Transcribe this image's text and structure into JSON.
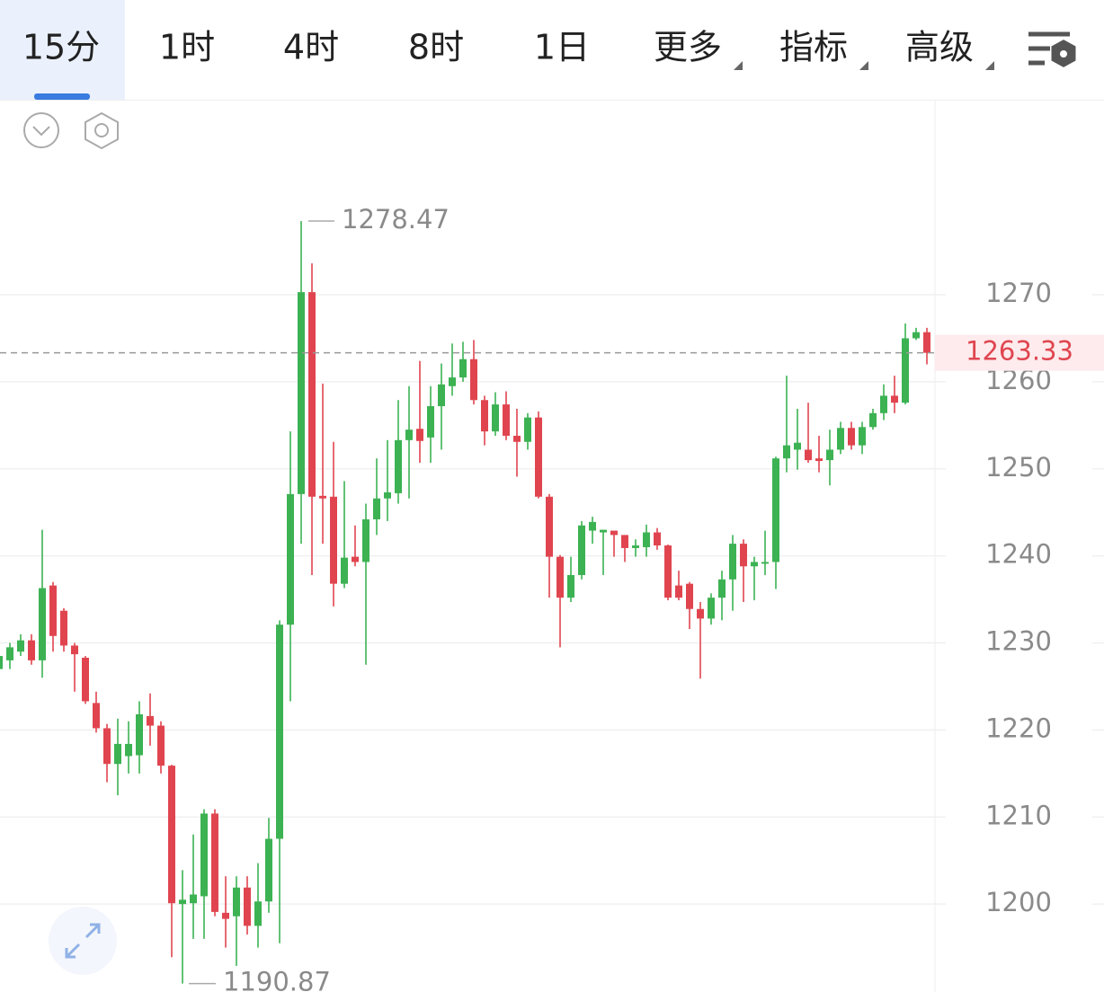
{
  "toolbar": {
    "tabs": [
      "15分",
      "1时",
      "4时",
      "8时",
      "1日",
      "更多",
      "指标",
      "高级"
    ]
  },
  "chart_data": {
    "type": "candlestick",
    "up_color": "#3cb253",
    "down_color": "#e0454f",
    "ylim": [
      1189.9,
      1292.3
    ],
    "yticks": [
      1200,
      1210,
      1220,
      1230,
      1240,
      1250,
      1260,
      1270
    ],
    "grid": true,
    "open": [
      1227.0,
      1228,
      1229,
      1230.3,
      1228,
      1236.6,
      1233.7,
      1229.7,
      1228.3,
      1223.1,
      1220.2,
      1216.1,
      1217,
      1217.1,
      1221.6,
      1220.5,
      1215.9,
      1200,
      1200.1,
      1200.9,
      1210.4,
      1199,
      1198.6,
      1201.9,
      1197.5,
      1200.3,
      1207.5,
      1232.1,
      1247.1,
      1270.3,
      1246.9,
      1246.8,
      1236.8,
      1239.9,
      1239.3,
      1244.2,
      1246.6,
      1247.2,
      1253.3,
      1254.6,
      1253.6,
      1257.2,
      1259.5,
      1260.5,
      1262.6,
      1257.9,
      1254.3,
      1257.4,
      1253.8,
      1253.1,
      1255.9,
      1246.8,
      1239.9,
      1235.2,
      1237.8,
      1242.9,
      1242.7,
      1242.9,
      1242.4,
      1240.9,
      1241,
      1242.7,
      1241.2,
      1236.6,
      1236.8,
      1233.9,
      1232.8,
      1235.2,
      1237.3,
      1241.4,
      1238.8,
      1239.1,
      1239.3,
      1251.2,
      1252.2,
      1252.2,
      1251.2,
      1251,
      1252.2,
      1254.7,
      1252.7,
      1254.8,
      1256.4,
      1258.4,
      1257.6,
      1265,
      1265.7
    ],
    "high": [
      1229,
      1230,
      1231,
      1231,
      1243,
      1237,
      1234,
      1230,
      1228.5,
      1224.4,
      1220.7,
      1221.3,
      1221,
      1223.3,
      1224.2,
      1221,
      1216,
      1203.9,
      1208,
      1210.9,
      1210.9,
      1203.2,
      1203.2,
      1203.2,
      1204.7,
      1209.9,
      1232.6,
      1254.3,
      1278.47,
      1273.6,
      1259.8,
      1253.1,
      1248.6,
      1243.5,
      1246,
      1251.2,
      1253.3,
      1257.9,
      1259.5,
      1262.4,
      1259.5,
      1262.1,
      1264.4,
      1264.6,
      1264.8,
      1258.4,
      1258.8,
      1258.9,
      1256.9,
      1256.4,
      1256.6,
      1247.1,
      1240.1,
      1239.9,
      1244,
      1244.5,
      1243,
      1242.7,
      1242.4,
      1241.9,
      1243.6,
      1243.2,
      1241.3,
      1238.3,
      1237,
      1234.7,
      1235.7,
      1238.3,
      1242.4,
      1241.9,
      1239.9,
      1242.9,
      1251.4,
      1260.7,
      1256.9,
      1257.6,
      1253.8,
      1254.5,
      1255.4,
      1255.4,
      1255.4,
      1256.9,
      1259.7,
      1260.7,
      1266.7,
      1266.2,
      1266.2
    ],
    "low": [
      1225.5,
      1227,
      1228.5,
      1227.5,
      1226,
      1229,
      1229,
      1224.4,
      1223,
      1219.7,
      1214,
      1212.5,
      1215,
      1215,
      1218.2,
      1215,
      1193.9,
      1190.87,
      1196,
      1196,
      1198.6,
      1195,
      1192.9,
      1196.5,
      1195,
      1199,
      1195.5,
      1223.3,
      1241.4,
      1237.8,
      1241.4,
      1234.2,
      1236.3,
      1238.8,
      1227.5,
      1242.4,
      1244,
      1246,
      1246.6,
      1250.7,
      1250.7,
      1252.2,
      1258.4,
      1260,
      1257.4,
      1252.7,
      1253.8,
      1253.3,
      1249.1,
      1252.2,
      1246.6,
      1235.2,
      1229.5,
      1234.7,
      1237.3,
      1241.4,
      1237.8,
      1239.9,
      1239.3,
      1239.9,
      1239.9,
      1240.7,
      1234.9,
      1234.9,
      1231.6,
      1225.9,
      1232.1,
      1232.6,
      1233.7,
      1234.7,
      1234.9,
      1237.8,
      1236.2,
      1249.6,
      1249.9,
      1250.7,
      1249.6,
      1248.1,
      1251.7,
      1252.2,
      1251.7,
      1254.5,
      1255.6,
      1256.4,
      1257.4,
      1264.8,
      1262
    ],
    "close": [
      1228.5,
      1229.5,
      1230.3,
      1228,
      1236.3,
      1230.8,
      1229.7,
      1228.7,
      1223.3,
      1220.2,
      1216.1,
      1218.4,
      1218.4,
      1221.8,
      1220.5,
      1215.9,
      1200.1,
      1200.5,
      1201.1,
      1210.4,
      1199.1,
      1198.3,
      1201.9,
      1197.5,
      1200.3,
      1207.5,
      1232.1,
      1247.1,
      1270.3,
      1246.8,
      1246.6,
      1236.8,
      1239.8,
      1239.3,
      1244.2,
      1246.6,
      1247.3,
      1253.3,
      1254.5,
      1253.2,
      1257.2,
      1259.7,
      1260.5,
      1262.6,
      1257.9,
      1254.3,
      1257.4,
      1253.8,
      1253.1,
      1255.9,
      1246.8,
      1239.9,
      1235.2,
      1237.8,
      1243.5,
      1243.9,
      1243,
      1242.4,
      1240.9,
      1241.2,
      1242.7,
      1241.2,
      1235.2,
      1235.2,
      1233.9,
      1232.8,
      1235.2,
      1237.3,
      1241.4,
      1238.8,
      1239.3,
      1239.3,
      1251.2,
      1252.7,
      1253,
      1251,
      1250.9,
      1252.2,
      1254.7,
      1252.7,
      1254.8,
      1256.4,
      1258.4,
      1257.6,
      1265,
      1265.7,
      1263.33
    ]
  }
}
